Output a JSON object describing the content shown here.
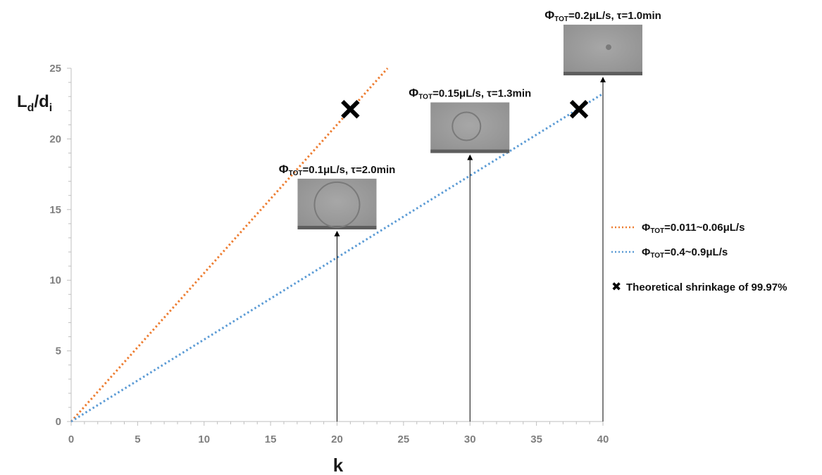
{
  "chart_data": {
    "type": "line",
    "xlabel": "k",
    "ylabel": {
      "main": "L",
      "sub1": "d",
      "slash": "/d",
      "sub2": "i"
    },
    "xlim": [
      0,
      40
    ],
    "ylim": [
      0,
      25
    ],
    "xticks": [
      0,
      5,
      10,
      15,
      20,
      25,
      30,
      35,
      40
    ],
    "yticks": [
      0,
      5,
      10,
      15,
      20,
      25
    ],
    "grid": false,
    "legend_position": "right",
    "series": [
      {
        "name": {
          "phi": "Φ",
          "sub": "TOT",
          "rest": "=0.011~0.06μL/s"
        },
        "style": "dotted",
        "color": "#ED7D31",
        "x": [
          0,
          23.8
        ],
        "y": [
          0,
          25
        ]
      },
      {
        "name": {
          "phi": "Φ",
          "sub": "TOT",
          "rest": "=0.4~0.9μL/s"
        },
        "style": "dotted",
        "color": "#5B9BD5",
        "x": [
          0,
          40
        ],
        "y": [
          0,
          23.2
        ]
      }
    ],
    "markers": {
      "name": "Theoretical shrinkage of 99.97%",
      "symbol": "✖",
      "color": "#000000",
      "points": [
        {
          "x": 21.0,
          "y": 22.1
        },
        {
          "x": 38.2,
          "y": 22.1
        }
      ]
    },
    "annotations": [
      {
        "x": 20,
        "y_tip": 13.3,
        "label": {
          "phi": "Φ",
          "sub": "TOT",
          "rest": "=0.1μL/s, τ=2.0min"
        },
        "image": "large-droplet"
      },
      {
        "x": 30,
        "y_tip": 18.7,
        "label": {
          "phi": "Φ",
          "sub": "TOT",
          "rest": "=0.15μL/s, τ=1.3min"
        },
        "image": "medium-droplet"
      },
      {
        "x": 40,
        "y_tip": 24.2,
        "label": {
          "phi": "Φ",
          "sub": "TOT",
          "rest": "=0.2μL/s, τ=1.0min"
        },
        "image": "small-droplet"
      }
    ]
  }
}
